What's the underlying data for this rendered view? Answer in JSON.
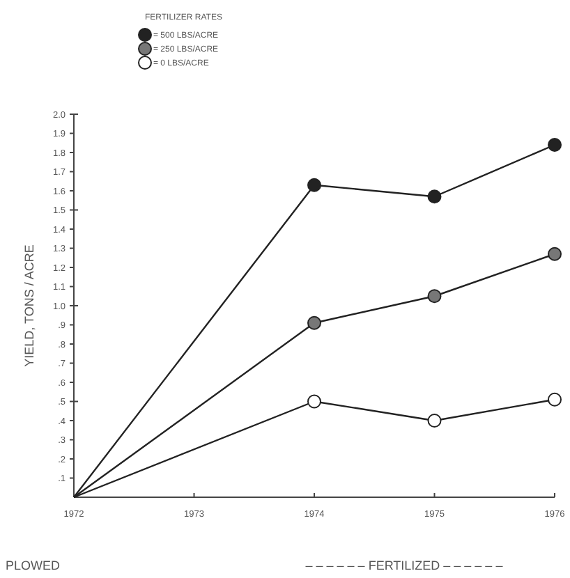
{
  "chart_data": {
    "type": "line",
    "ylabel": "YIELD,  TONS / ACRE",
    "legend_title": "FERTILIZER  RATES",
    "legend": "top left",
    "marker": "circle",
    "line_style": "solid",
    "x": [
      1972,
      1974,
      1975,
      1976
    ],
    "xlim": [
      1972,
      1976
    ],
    "xticks": [
      1972,
      1973,
      1974,
      1975,
      1976
    ],
    "ylim": [
      0,
      2.0
    ],
    "yticks": [
      {
        "value": 0.1,
        "label": ".1"
      },
      {
        "value": 0.2,
        "label": ".2"
      },
      {
        "value": 0.3,
        "label": ".3"
      },
      {
        "value": 0.4,
        "label": ".4"
      },
      {
        "value": 0.5,
        "label": ".5"
      },
      {
        "value": 0.6,
        "label": ".6"
      },
      {
        "value": 0.7,
        "label": ".7"
      },
      {
        "value": 0.8,
        "label": ".8"
      },
      {
        "value": 0.9,
        "label": ".9"
      },
      {
        "value": 1.0,
        "label": "1.0"
      },
      1.1,
      1.2,
      1.3,
      1.4,
      1.5,
      1.6,
      1.7,
      1.8,
      1.9,
      {
        "value": 2.0,
        "label": "2.0"
      }
    ],
    "series": [
      {
        "name": "= 500  LBS/ACRE",
        "color": "#222222",
        "values": [
          0,
          1.63,
          1.57,
          1.84
        ]
      },
      {
        "name": "= 250  LBS/ACRE",
        "color": "#777777",
        "values": [
          0,
          0.91,
          1.05,
          1.27
        ]
      },
      {
        "name": "= 0  LBS/ACRE",
        "color": "#ffffff",
        "values": [
          0,
          0.5,
          0.4,
          0.51
        ]
      }
    ],
    "annotations": [
      "PLOWED",
      "– – – – – –  FERTILIZED  – – – – – –"
    ]
  }
}
